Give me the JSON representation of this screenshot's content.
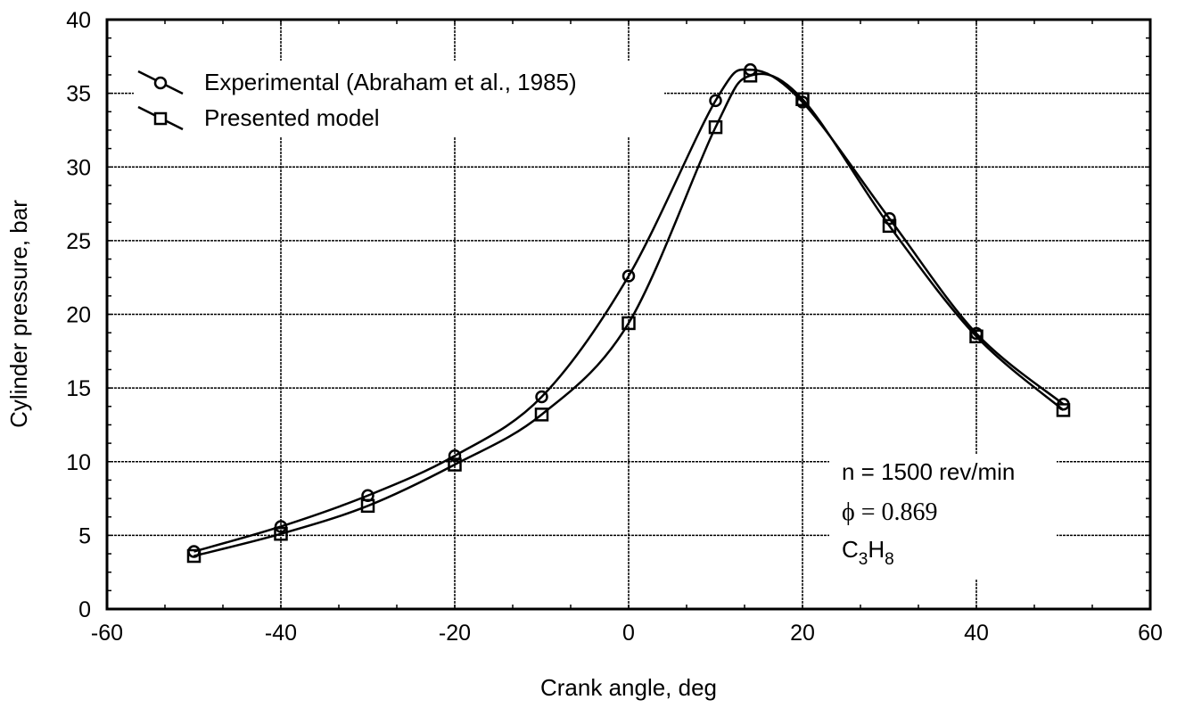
{
  "chart_data": {
    "type": "line",
    "title": "",
    "xlabel": "Crank angle, deg",
    "ylabel": "Cylinder pressure, bar",
    "xlim": [
      -60,
      60
    ],
    "ylim": [
      0,
      40
    ],
    "x_ticks": [
      "-60",
      "-40",
      "-20",
      "0",
      "20",
      "40",
      "60"
    ],
    "x_tick_values": [
      -60,
      -40,
      -20,
      0,
      20,
      40,
      60
    ],
    "y_ticks": [
      "0",
      "5",
      "10",
      "15",
      "20",
      "25",
      "30",
      "35",
      "40"
    ],
    "y_tick_values": [
      0,
      5,
      10,
      15,
      20,
      25,
      30,
      35,
      40
    ],
    "grid": true,
    "legend_position": "top-left",
    "series": [
      {
        "name": "Experimental (Abraham et al., 1985)",
        "marker": "circle",
        "x": [
          -50,
          -40,
          -30,
          -20,
          -10,
          0,
          10,
          14,
          20,
          30,
          40,
          50
        ],
        "values": [
          3.9,
          5.6,
          7.7,
          10.4,
          14.4,
          22.6,
          34.5,
          36.6,
          34.4,
          26.5,
          18.7,
          13.9
        ]
      },
      {
        "name": "Presented model",
        "marker": "square",
        "x": [
          -50,
          -40,
          -30,
          -20,
          -10,
          0,
          10,
          14,
          20,
          30,
          40,
          50
        ],
        "values": [
          3.6,
          5.1,
          7.0,
          9.8,
          13.2,
          19.4,
          32.7,
          36.2,
          34.6,
          26.0,
          18.5,
          13.5
        ]
      }
    ],
    "annotations": {
      "speed": "n = 1500 rev/min",
      "phi_symbol": "ϕ",
      "phi_text": " = 0.869",
      "fuel_c": "C",
      "fuel_c_sub": "3",
      "fuel_h": "H",
      "fuel_h_sub": "8"
    },
    "colors": {
      "line": "#000000",
      "grid": "#000000",
      "background": "#ffffff"
    }
  }
}
